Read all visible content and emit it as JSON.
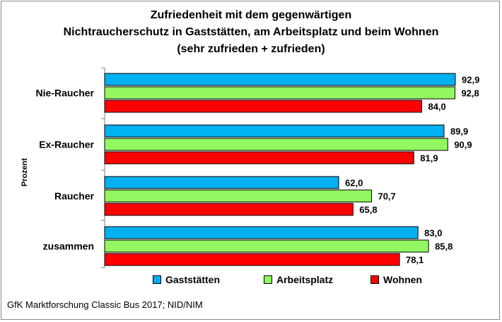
{
  "chart_data": {
    "type": "bar",
    "orientation": "horizontal",
    "title_lines": [
      "Zufriedenheit mit dem gegenwärtigen",
      "Nichtraucherschutz  in Gaststätten, am Arbeitsplatz und beim Wohnen",
      "(sehr zufrieden + zufrieden)"
    ],
    "ylabel": "Prozent",
    "categories": [
      "Nie-Raucher",
      "Ex-Raucher",
      "Raucher",
      "zusammen"
    ],
    "series": [
      {
        "name": "Gaststätten",
        "color": "#00b0f0",
        "values": [
          92.9,
          89.9,
          62.0,
          83.0
        ],
        "labels": [
          "92,9",
          "89,9",
          "62,0",
          "83,0"
        ]
      },
      {
        "name": "Arbeitsplatz",
        "color": "#92f760",
        "values": [
          92.8,
          90.9,
          70.7,
          85.8
        ],
        "labels": [
          "92,8",
          "90,9",
          "70,7",
          "85,8"
        ]
      },
      {
        "name": "Wohnen",
        "color": "#ff0000",
        "values": [
          84.0,
          81.9,
          65.8,
          78.1
        ],
        "labels": [
          "84,0",
          "81,9",
          "65,8",
          "78,1"
        ]
      }
    ],
    "xlim": [
      0,
      92.9
    ],
    "grid": false,
    "legend_position": "bottom"
  },
  "source": "GfK Marktforschung Classic Bus 2017; NID/NIM"
}
